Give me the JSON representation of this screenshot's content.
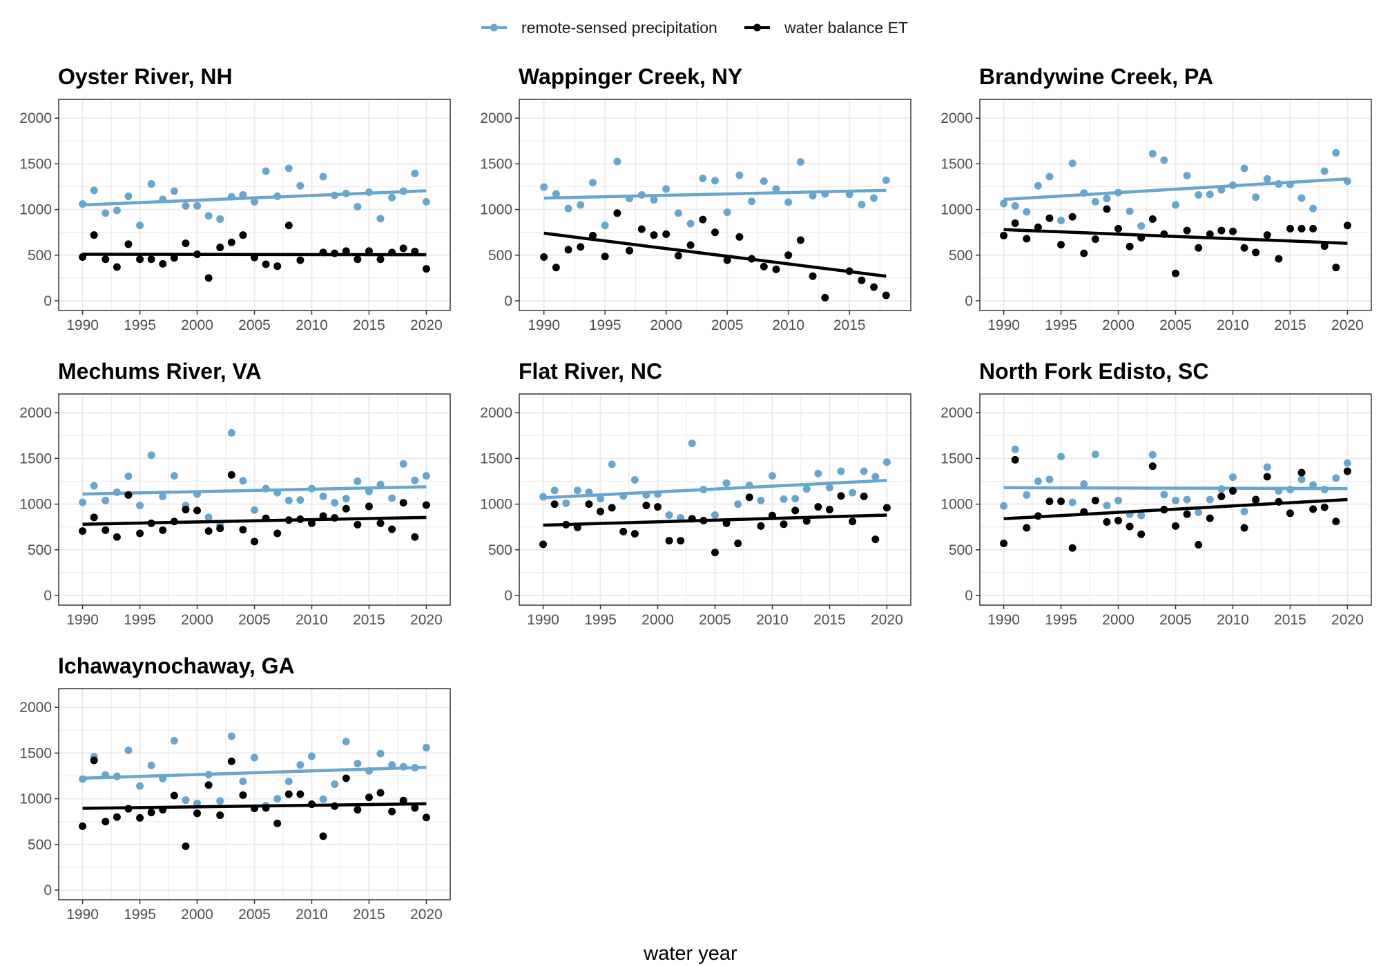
{
  "colors": {
    "precipitation": "#6aa5cd",
    "et": "#000000",
    "grid": "#ebebeb",
    "border": "#333333",
    "tick": "#4d4d4d"
  },
  "chart_data": {
    "type": "scatter",
    "xlabel": "water year",
    "ylabel": "",
    "ylim": [
      0,
      2100
    ],
    "yticks": [
      0,
      500,
      1000,
      1500,
      2000
    ],
    "grid": true,
    "legend": {
      "placement": "top",
      "entries": [
        {
          "key": "precipitation",
          "label": "remote-sensed precipitation"
        },
        {
          "key": "et",
          "label": "water balance ET"
        }
      ]
    },
    "panels": [
      {
        "title": "Oyster River, NH",
        "xlim": [
          1989,
          2021
        ],
        "xticks": [
          1990,
          1995,
          2000,
          2005,
          2010,
          2015,
          2020
        ],
        "x": [
          1990,
          1991,
          1992,
          1993,
          1994,
          1995,
          1996,
          1997,
          1998,
          1999,
          2000,
          2001,
          2002,
          2003,
          2004,
          2005,
          2006,
          2007,
          2008,
          2009,
          2011,
          2012,
          2013,
          2014,
          2015,
          2016,
          2017,
          2018,
          2019,
          2020
        ],
        "series": [
          {
            "key": "precipitation",
            "name": "remote-sensed precipitation",
            "values": [
              1060,
              1210,
              960,
              990,
              1145,
              825,
              1280,
              1110,
              1200,
              1040,
              1040,
              930,
              895,
              1140,
              1160,
              1085,
              1420,
              1145,
              1450,
              1260,
              1360,
              1155,
              1175,
              1030,
              1190,
              900,
              1130,
              1200,
              1395,
              1085
            ],
            "trend": [
              1050,
              1205
            ]
          },
          {
            "key": "et",
            "name": "water balance ET",
            "values": [
              480,
              720,
              455,
              370,
              620,
              455,
              455,
              405,
              470,
              630,
              510,
              250,
              585,
              640,
              720,
              475,
              400,
              380,
              825,
              445,
              530,
              520,
              545,
              455,
              545,
              455,
              530,
              575,
              540,
              350
            ],
            "trend": [
              510,
              505
            ]
          }
        ]
      },
      {
        "title": "Wappinger Creek, NY",
        "xlim": [
          1989,
          2019
        ],
        "xticks": [
          1990,
          1995,
          2000,
          2005,
          2010,
          2015
        ],
        "x": [
          1990,
          1991,
          1992,
          1993,
          1994,
          1995,
          1996,
          1997,
          1998,
          1999,
          2000,
          2001,
          2002,
          2003,
          2004,
          2005,
          2006,
          2007,
          2008,
          2009,
          2010,
          2011,
          2012,
          2013,
          2015,
          2016,
          2017,
          2018
        ],
        "series": [
          {
            "key": "precipitation",
            "name": "remote-sensed precipitation",
            "values": [
              1245,
              1170,
              1010,
              1050,
              1295,
              825,
              1525,
              1120,
              1160,
              1105,
              1225,
              960,
              845,
              1340,
              1315,
              970,
              1375,
              1090,
              1310,
              1225,
              1080,
              1520,
              1150,
              1170,
              1165,
              1055,
              1125,
              1320
            ],
            "trend": [
              1125,
              1210
            ]
          },
          {
            "key": "et",
            "name": "water balance ET",
            "values": [
              480,
              365,
              560,
              590,
              715,
              485,
              960,
              550,
              785,
              720,
              730,
              495,
              610,
              890,
              750,
              445,
              700,
              460,
              375,
              345,
              500,
              665,
              270,
              35,
              325,
              225,
              150,
              60
            ],
            "trend": [
              740,
              270
            ]
          }
        ]
      },
      {
        "title": "Brandywine Creek, PA",
        "xlim": [
          1989,
          2021
        ],
        "xticks": [
          1990,
          1995,
          2000,
          2005,
          2010,
          2015,
          2020
        ],
        "x": [
          1990,
          1991,
          1992,
          1993,
          1994,
          1995,
          1996,
          1997,
          1998,
          1999,
          2000,
          2001,
          2002,
          2003,
          2004,
          2005,
          2006,
          2007,
          2008,
          2009,
          2010,
          2011,
          2012,
          2013,
          2014,
          2015,
          2016,
          2017,
          2018,
          2019,
          2020
        ],
        "series": [
          {
            "key": "precipitation",
            "name": "remote-sensed precipitation",
            "values": [
              1065,
              1040,
              975,
              1260,
              1360,
              880,
              1505,
              1180,
              1085,
              1120,
              1185,
              980,
              820,
              1610,
              1540,
              1050,
              1370,
              1160,
              1165,
              1215,
              1265,
              1450,
              1135,
              1335,
              1280,
              1275,
              1125,
              1010,
              1420,
              1620,
              1310
            ],
            "trend": [
              1110,
              1335
            ]
          },
          {
            "key": "et",
            "name": "water balance ET",
            "values": [
              715,
              850,
              680,
              805,
              905,
              615,
              920,
              520,
              675,
              1005,
              790,
              595,
              690,
              895,
              730,
              300,
              770,
              580,
              730,
              770,
              760,
              580,
              530,
              720,
              460,
              790,
              790,
              790,
              600,
              365,
              825
            ],
            "trend": [
              780,
              630
            ]
          }
        ]
      },
      {
        "title": "Mechums River, VA",
        "xlim": [
          1989,
          2021
        ],
        "xticks": [
          1990,
          1995,
          2000,
          2005,
          2010,
          2015,
          2020
        ],
        "x": [
          1990,
          1991,
          1992,
          1993,
          1994,
          1995,
          1996,
          1997,
          1998,
          1999,
          2000,
          2001,
          2002,
          2003,
          2004,
          2005,
          2006,
          2007,
          2008,
          2009,
          2010,
          2011,
          2012,
          2013,
          2014,
          2015,
          2016,
          2017,
          2018,
          2019,
          2020
        ],
        "series": [
          {
            "key": "precipitation",
            "name": "remote-sensed precipitation",
            "values": [
              1020,
              1200,
              1040,
              1130,
              1305,
              985,
              1535,
              1085,
              1310,
              985,
              1110,
              855,
              770,
              1780,
              1255,
              935,
              1170,
              1125,
              1040,
              1045,
              1170,
              1085,
              1015,
              1060,
              1250,
              1140,
              1215,
              1065,
              1440,
              1260,
              1310
            ],
            "trend": [
              1110,
              1190
            ]
          },
          {
            "key": "et",
            "name": "water balance ET",
            "values": [
              705,
              855,
              715,
              640,
              1100,
              680,
              790,
              715,
              810,
              940,
              930,
              705,
              735,
              1320,
              720,
              590,
              845,
              680,
              825,
              835,
              790,
              870,
              850,
              950,
              775,
              975,
              790,
              725,
              1015,
              640,
              990
            ],
            "trend": [
              780,
              855
            ]
          }
        ]
      },
      {
        "title": "Flat River, NC",
        "xlim": [
          1989,
          2021
        ],
        "xticks": [
          1990,
          1995,
          2000,
          2005,
          2010,
          2015,
          2020
        ],
        "x": [
          1990,
          1991,
          1992,
          1993,
          1994,
          1995,
          1996,
          1997,
          1998,
          1999,
          2000,
          2001,
          2002,
          2003,
          2004,
          2005,
          2006,
          2007,
          2008,
          2009,
          2010,
          2011,
          2012,
          2013,
          2014,
          2015,
          2016,
          2017,
          2018,
          2019,
          2020
        ],
        "series": [
          {
            "key": "precipitation",
            "name": "remote-sensed precipitation",
            "values": [
              1080,
              1150,
              1010,
              1150,
              1130,
              1060,
              1435,
              1090,
              1265,
              1100,
              1110,
              880,
              850,
              1665,
              1160,
              880,
              1230,
              1000,
              1205,
              1040,
              1310,
              1055,
              1060,
              1165,
              1335,
              1180,
              1360,
              1125,
              1360,
              1300,
              1460
            ],
            "trend": [
              1070,
              1260
            ]
          },
          {
            "key": "et",
            "name": "water balance ET",
            "values": [
              560,
              1000,
              775,
              745,
              1000,
              920,
              960,
              700,
              675,
              985,
              970,
              600,
              600,
              840,
              820,
              470,
              790,
              570,
              1075,
              760,
              875,
              780,
              930,
              815,
              970,
              940,
              1090,
              810,
              1085,
              615,
              960
            ],
            "trend": [
              770,
              880
            ]
          }
        ]
      },
      {
        "title": "North Fork Edisto, SC",
        "xlim": [
          1989,
          2021
        ],
        "xticks": [
          1990,
          1995,
          2000,
          2005,
          2010,
          2015,
          2020
        ],
        "x": [
          1990,
          1991,
          1992,
          1993,
          1994,
          1995,
          1996,
          1997,
          1998,
          1999,
          2000,
          2001,
          2002,
          2003,
          2004,
          2005,
          2006,
          2007,
          2008,
          2009,
          2010,
          2011,
          2012,
          2013,
          2014,
          2015,
          2016,
          2017,
          2018,
          2019,
          2020
        ],
        "series": [
          {
            "key": "precipitation",
            "name": "remote-sensed precipitation",
            "values": [
              980,
              1600,
              1100,
              1250,
              1270,
              1520,
              1020,
              1220,
              1545,
              985,
              1040,
              890,
              875,
              1540,
              1105,
              1040,
              1050,
              910,
              1050,
              1165,
              1295,
              920,
              1020,
              1405,
              1145,
              1160,
              1270,
              1210,
              1160,
              1285,
              1450
            ],
            "trend": [
              1180,
              1170
            ]
          },
          {
            "key": "et",
            "name": "water balance ET",
            "values": [
              570,
              1485,
              740,
              870,
              1030,
              1030,
              520,
              915,
              1040,
              805,
              820,
              755,
              670,
              1415,
              940,
              760,
              890,
              555,
              845,
              1085,
              1145,
              740,
              1050,
              1300,
              1025,
              900,
              1345,
              945,
              965,
              810,
              1360
            ],
            "trend": [
              840,
              1050
            ]
          }
        ]
      },
      {
        "title": "Ichawaynochaway, GA",
        "xlim": [
          1989,
          2021
        ],
        "xticks": [
          1990,
          1995,
          2000,
          2005,
          2010,
          2015,
          2020
        ],
        "x": [
          1990,
          1991,
          1992,
          1993,
          1994,
          1995,
          1996,
          1997,
          1998,
          1999,
          2000,
          2001,
          2002,
          2003,
          2004,
          2005,
          2006,
          2007,
          2008,
          2009,
          2010,
          2011,
          2012,
          2013,
          2014,
          2015,
          2016,
          2017,
          2018,
          2019,
          2020
        ],
        "series": [
          {
            "key": "precipitation",
            "name": "remote-sensed precipitation",
            "values": [
              1215,
              1460,
              1260,
              1245,
              1530,
              1140,
              1365,
              1220,
              1635,
              985,
              950,
              1265,
              975,
              1685,
              1190,
              1450,
              925,
              1000,
              1190,
              1370,
              1465,
              995,
              1160,
              1625,
              1385,
              1305,
              1495,
              1370,
              1350,
              1340,
              1560
            ],
            "trend": [
              1225,
              1345
            ]
          },
          {
            "key": "et",
            "name": "water balance ET",
            "values": [
              700,
              1420,
              750,
              800,
              890,
              790,
              850,
              880,
              1035,
              480,
              840,
              1150,
              820,
              1410,
              1040,
              895,
              900,
              730,
              1050,
              1050,
              940,
              590,
              920,
              1225,
              880,
              1015,
              1065,
              860,
              980,
              900,
              795
            ],
            "trend": [
              895,
              945
            ]
          }
        ]
      }
    ]
  }
}
